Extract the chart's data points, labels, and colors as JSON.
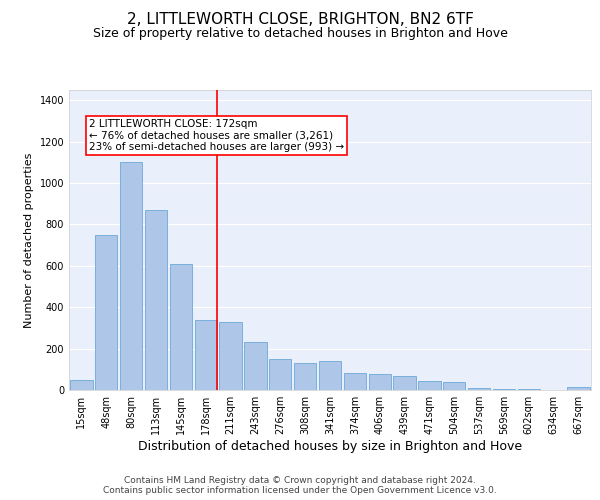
{
  "title": "2, LITTLEWORTH CLOSE, BRIGHTON, BN2 6TF",
  "subtitle": "Size of property relative to detached houses in Brighton and Hove",
  "xlabel": "Distribution of detached houses by size in Brighton and Hove",
  "ylabel": "Number of detached properties",
  "categories": [
    "15sqm",
    "48sqm",
    "80sqm",
    "113sqm",
    "145sqm",
    "178sqm",
    "211sqm",
    "243sqm",
    "276sqm",
    "308sqm",
    "341sqm",
    "374sqm",
    "406sqm",
    "439sqm",
    "471sqm",
    "504sqm",
    "537sqm",
    "569sqm",
    "602sqm",
    "634sqm",
    "667sqm"
  ],
  "values": [
    50,
    750,
    1100,
    870,
    610,
    340,
    330,
    230,
    150,
    130,
    140,
    80,
    75,
    70,
    45,
    40,
    10,
    5,
    3,
    2,
    15
  ],
  "bar_color": "#aec6e8",
  "bar_edge_color": "#5a9fd4",
  "background_color": "#eaf0fb",
  "grid_color": "#ffffff",
  "redline_label": "2 LITTLEWORTH CLOSE: 172sqm",
  "annotation_line1": "← 76% of detached houses are smaller (3,261)",
  "annotation_line2": "23% of semi-detached houses are larger (993) →",
  "redline_x": 5.45,
  "ylim": [
    0,
    1450
  ],
  "yticks": [
    0,
    200,
    400,
    600,
    800,
    1000,
    1200,
    1400
  ],
  "footer1": "Contains HM Land Registry data © Crown copyright and database right 2024.",
  "footer2": "Contains public sector information licensed under the Open Government Licence v3.0.",
  "title_fontsize": 11,
  "subtitle_fontsize": 9,
  "xlabel_fontsize": 9,
  "ylabel_fontsize": 8,
  "tick_fontsize": 7,
  "footer_fontsize": 6.5,
  "annot_fontsize": 7.5
}
